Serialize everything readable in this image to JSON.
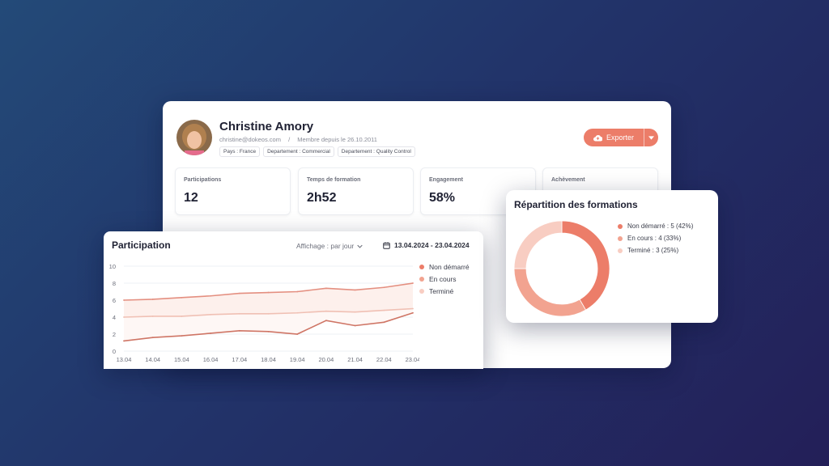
{
  "profile": {
    "name": "Christine Amory",
    "email": "christine@dokeos.com",
    "member_since": "Membre depuis le 26.10.2011",
    "tags": [
      "Pays : France",
      "Departement : Commercial",
      "Departement : Quality Control"
    ],
    "export_label": "Exporter"
  },
  "stats": [
    {
      "label": "Participations",
      "value": "12"
    },
    {
      "label": "Temps de formation",
      "value": "2h52"
    },
    {
      "label": "Engagement",
      "value": "58%"
    },
    {
      "label": "Achèvement",
      "value": ""
    }
  ],
  "participation": {
    "title": "Participation",
    "display_label": "Affichage : par jour",
    "date_range": "13.04.2024 - 23.04.2024"
  },
  "repartition": {
    "title": "Répartition des formations"
  },
  "colors": {
    "accent": "#ec7d69",
    "non_demarre": "#ec7d69",
    "en_cours": "#f2a390",
    "termine": "#f8cdc2"
  },
  "icons": {
    "export": "cloud-upload-icon",
    "calendar": "calendar-icon",
    "dropdown": "chevron-down-icon"
  },
  "chart_data": [
    {
      "type": "line",
      "x": [
        "13.04",
        "14.04",
        "15.04",
        "16.04",
        "17.04",
        "18.04",
        "19.04",
        "20.04",
        "21.04",
        "22.04",
        "23.04"
      ],
      "series": [
        {
          "name": "Non démarré",
          "values": [
            6.0,
            6.1,
            6.3,
            6.5,
            6.8,
            6.9,
            7.0,
            7.4,
            7.2,
            7.5,
            8.0
          ]
        },
        {
          "name": "En cours",
          "values": [
            4.0,
            4.1,
            4.1,
            4.3,
            4.4,
            4.4,
            4.5,
            4.7,
            4.6,
            4.8,
            5.0
          ]
        },
        {
          "name": "Terminé",
          "values": [
            1.2,
            1.6,
            1.8,
            2.1,
            2.4,
            2.3,
            2.0,
            3.6,
            3.0,
            3.4,
            4.5
          ]
        }
      ],
      "yticks": [
        "0",
        "2",
        "4",
        "6",
        "8",
        "10"
      ],
      "ylim": [
        0,
        10
      ],
      "grid": true,
      "legend": "right"
    },
    {
      "type": "pie",
      "labels": [
        "Non démarré : 5 (42%)",
        "En cours : 4 (33%)",
        "Terminé : 3 (25%)"
      ],
      "values": [
        5,
        4,
        3
      ],
      "legend": "right"
    }
  ]
}
